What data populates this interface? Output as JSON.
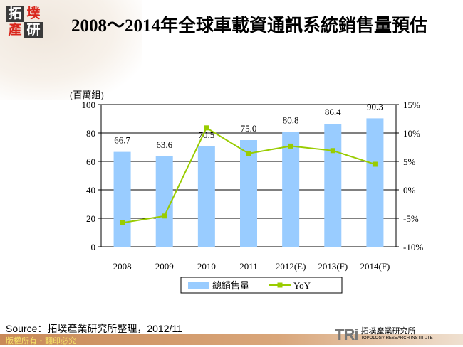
{
  "logo": {
    "chars": [
      "拓",
      "墣",
      "產",
      "研"
    ]
  },
  "title": "2008～2014年全球車載資通訊系統銷售量預估",
  "chart_data": {
    "type": "bar+line",
    "categories": [
      "2008",
      "2009",
      "2010",
      "2011",
      "2012(E)",
      "2013(F)",
      "2014(F)"
    ],
    "series": [
      {
        "name": "總銷售量",
        "type": "bar",
        "axis": "left",
        "values": [
          66.7,
          63.6,
          70.5,
          75.0,
          80.8,
          86.4,
          90.3
        ],
        "labels": [
          "66.7",
          "63.6",
          "70.5",
          "75.0",
          "80.8",
          "86.4",
          "90.3"
        ],
        "color": "#99ccff"
      },
      {
        "name": "YoY",
        "type": "line",
        "axis": "right",
        "values": [
          -5.8,
          -4.6,
          10.9,
          6.4,
          7.7,
          6.9,
          4.5
        ],
        "color": "#99cc00"
      }
    ],
    "ylabel": "(百萬組)",
    "ylim": [
      0,
      100
    ],
    "yticks": [
      "0",
      "20",
      "40",
      "60",
      "80",
      "100"
    ],
    "y2lim": [
      -10,
      15
    ],
    "y2ticks": [
      "-10%",
      "-5%",
      "0%",
      "5%",
      "10%",
      "15%"
    ],
    "grid": true,
    "legend": "bottom"
  },
  "source": "Source：拓墣產業研究所整理，2012/11",
  "footer": "版權所有・翻印必究",
  "brand": {
    "mark": "TRi",
    "name": "拓墣產業研究所",
    "english": "TOPOLOGY RESEARCH INSTITUTE"
  }
}
